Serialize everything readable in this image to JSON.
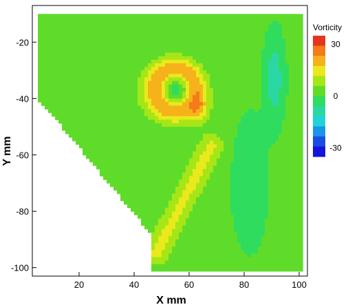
{
  "chart_data": {
    "type": "heatmap",
    "xlabel": "X mm",
    "ylabel": "Y mm",
    "xlim": [
      3,
      103
    ],
    "ylim": [
      -103,
      -7
    ],
    "xticks": [
      20,
      40,
      60,
      80,
      100
    ],
    "yticks": [
      -20,
      -40,
      -60,
      -80,
      -100
    ],
    "data_extent": {
      "x": [
        5,
        101
      ],
      "y": [
        -101,
        -10
      ]
    },
    "grid": false,
    "legend": {
      "title": "Vorticity",
      "placement": "right",
      "ticks": [
        30,
        0,
        -30
      ],
      "levels": [
        35,
        28,
        21,
        14,
        7,
        0,
        -7,
        -14,
        -21,
        -28,
        -35
      ],
      "colors": [
        "#e8341c",
        "#f47a1a",
        "#f5b21a",
        "#e9e91c",
        "#a6e617",
        "#5fdc2a",
        "#2fdc5e",
        "#2bd8a3",
        "#21d3d9",
        "#1a96e8",
        "#1a4de4",
        "#1414dc"
      ]
    },
    "features": [
      {
        "type": "vortex-ring",
        "center": [
          55,
          -37
        ],
        "peak_vorticity": 24,
        "core_vorticity": -2
      },
      {
        "type": "positive-core",
        "center": [
          64,
          -44
        ],
        "peak_vorticity": 32
      },
      {
        "type": "negative-streak",
        "x": [
          85,
          96
        ],
        "y": [
          -15,
          -50
        ],
        "min_vorticity": -14
      },
      {
        "type": "positive-streak",
        "from": [
          48,
          -95
        ],
        "to": [
          68,
          -57
        ],
        "peak_vorticity": 14
      }
    ]
  }
}
